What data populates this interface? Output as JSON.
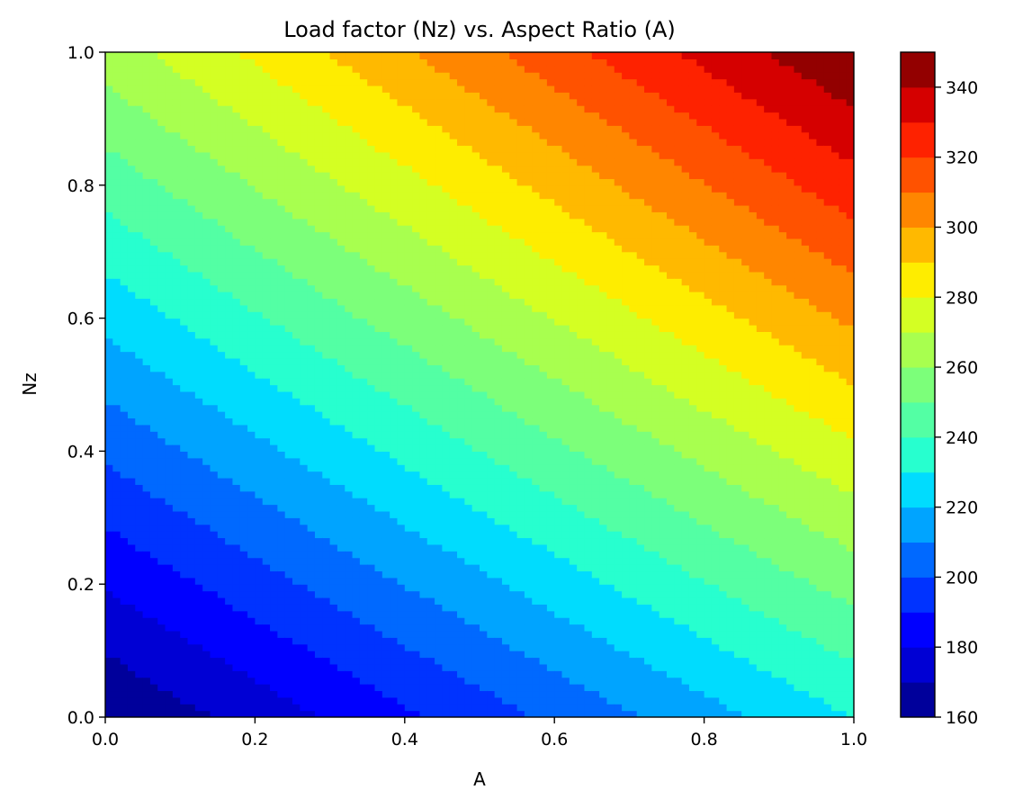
{
  "chart_data": {
    "type": "heatmap",
    "subtype": "filled-contour",
    "title": "Load factor (Nz) vs. Aspect Ratio (A)",
    "xlabel": "A",
    "ylabel": "Nz",
    "xlim": [
      0.0,
      1.0
    ],
    "ylim": [
      0.0,
      1.0
    ],
    "x_ticks": [
      "0.0",
      "0.2",
      "0.4",
      "0.6",
      "0.8",
      "1.0"
    ],
    "y_ticks": [
      "0.0",
      "0.2",
      "0.4",
      "0.6",
      "0.8",
      "1.0"
    ],
    "x_tick_values": [
      0.0,
      0.2,
      0.4,
      0.6,
      0.8,
      1.0
    ],
    "y_tick_values": [
      0.0,
      0.2,
      0.4,
      0.6,
      0.8,
      1.0
    ],
    "colorbar": {
      "ticks": [
        "160",
        "180",
        "200",
        "220",
        "240",
        "260",
        "280",
        "300",
        "320",
        "340"
      ],
      "tick_values": [
        160,
        180,
        200,
        220,
        240,
        260,
        280,
        300,
        320,
        340
      ],
      "levels": [
        160,
        170,
        180,
        190,
        200,
        210,
        220,
        230,
        240,
        250,
        260,
        270,
        280,
        290,
        300,
        310,
        320,
        330,
        340,
        350
      ],
      "colormap": "jet",
      "band_colors": [
        "#00009b",
        "#0000d4",
        "#0000ff",
        "#0033ff",
        "#0069ff",
        "#00a4ff",
        "#00dcfe",
        "#27ffcf",
        "#53ffa4",
        "#7cff7a",
        "#a8ff4f",
        "#d4ff23",
        "#feed00",
        "#ffb900",
        "#ff8600",
        "#ff5200",
        "#fe2200",
        "#d50000",
        "#930000"
      ]
    },
    "field_samples": {
      "note": "approximate field values read from contour bands",
      "points": [
        {
          "A": 0.0,
          "Nz": 0.0,
          "value": 160
        },
        {
          "A": 1.0,
          "Nz": 0.0,
          "value": 230
        },
        {
          "A": 0.0,
          "Nz": 1.0,
          "value": 265
        },
        {
          "A": 1.0,
          "Nz": 1.0,
          "value": 350
        }
      ]
    },
    "grid": false,
    "legend": "colorbar-right"
  }
}
